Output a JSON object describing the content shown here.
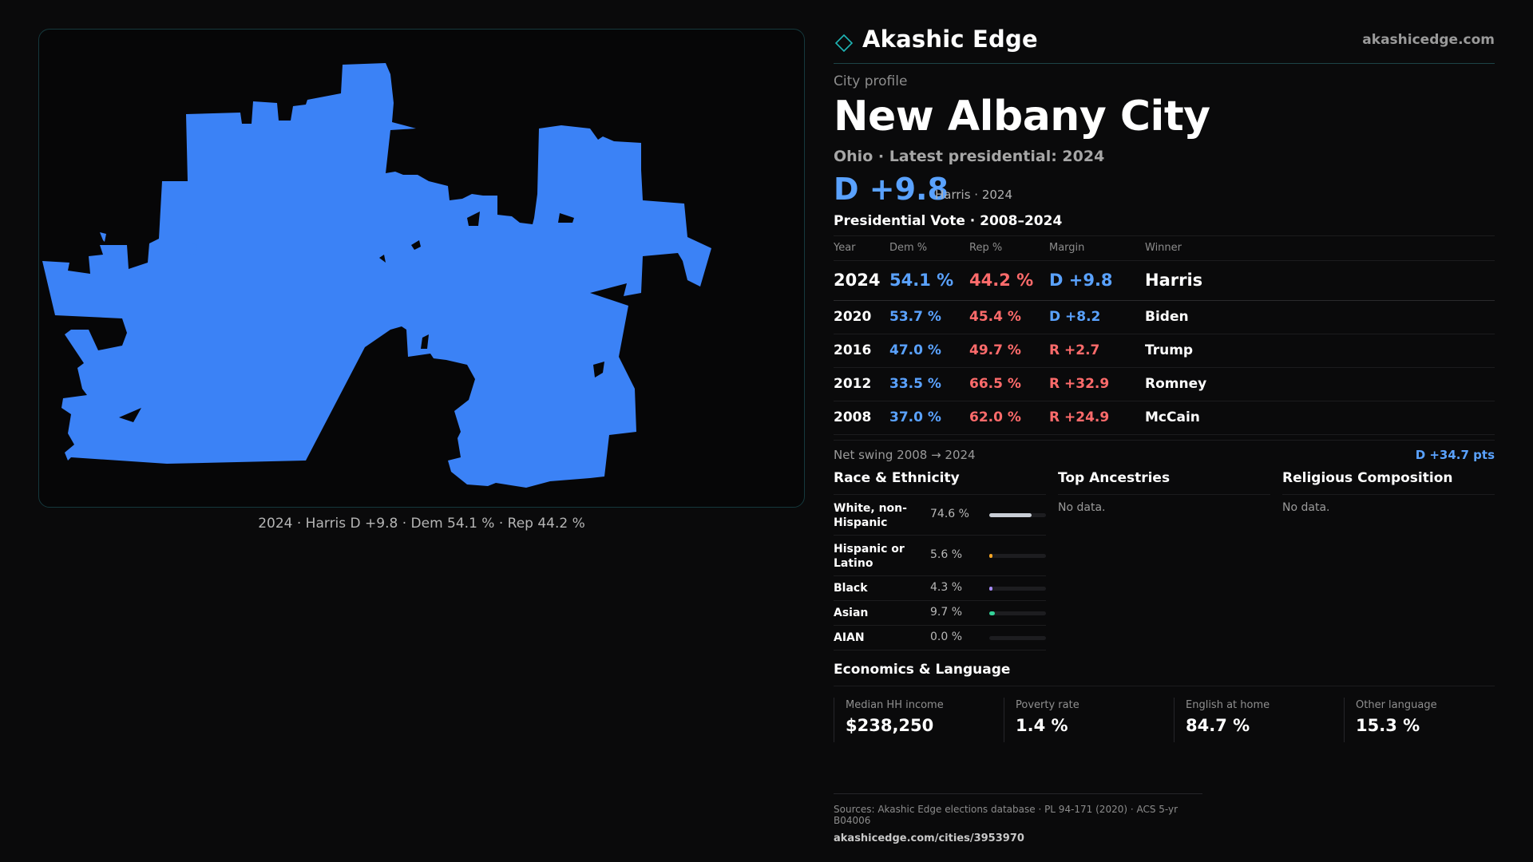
{
  "map": {
    "caption": "2024 · Harris D +9.8 · Dem 54.1 % · Rep 44.2 %",
    "fill_color": "#3b82f6"
  },
  "header": {
    "brand_name": "Akashic Edge",
    "brand_url": "akashicedge.com",
    "logo_icon": "diamond-outline"
  },
  "profile": {
    "eyebrow": "City profile",
    "city_name": "New Albany City",
    "subline": "Ohio · Latest presidential: 2024",
    "headline_margin": "D +9.8",
    "headline_sub": "Harris · 2024"
  },
  "votes": {
    "title": "Presidential Vote · 2008–2024",
    "columns": [
      "Year",
      "Dem %",
      "Rep %",
      "Margin",
      "Winner"
    ],
    "rows": [
      {
        "year": "2024",
        "dem": "54.1 %",
        "rep": "44.2 %",
        "margin": "D +9.8",
        "party": "D",
        "winner": "Harris"
      },
      {
        "year": "2020",
        "dem": "53.7 %",
        "rep": "45.4 %",
        "margin": "D +8.2",
        "party": "D",
        "winner": "Biden"
      },
      {
        "year": "2016",
        "dem": "47.0 %",
        "rep": "49.7 %",
        "margin": "R +2.7",
        "party": "R",
        "winner": "Trump"
      },
      {
        "year": "2012",
        "dem": "33.5 %",
        "rep": "66.5 %",
        "margin": "R +32.9",
        "party": "R",
        "winner": "Romney"
      },
      {
        "year": "2008",
        "dem": "37.0 %",
        "rep": "62.0 %",
        "margin": "R +24.9",
        "party": "R",
        "winner": "McCain"
      }
    ],
    "net_swing_label": "Net swing 2008 → 2024",
    "net_swing_value": "D +34.7 pts"
  },
  "race": {
    "title": "Race & Ethnicity",
    "rows": [
      {
        "label": "White, non-Hispanic",
        "value": "74.6 %",
        "fraction": 0.746,
        "color": "#c9ced6",
        "two_line": true
      },
      {
        "label": "Hispanic or Latino",
        "value": "5.6 %",
        "fraction": 0.056,
        "color": "#f5a524",
        "two_line": true
      },
      {
        "label": "Black",
        "value": "4.3 %",
        "fraction": 0.043,
        "color": "#a78bfa",
        "two_line": false
      },
      {
        "label": "Asian",
        "value": "9.7 %",
        "fraction": 0.097,
        "color": "#34d399",
        "two_line": false
      },
      {
        "label": "AIAN",
        "value": "0.0 %",
        "fraction": 0.0,
        "color": "#f472b6",
        "two_line": false
      }
    ]
  },
  "ancestries": {
    "title": "Top Ancestries",
    "empty": "No data."
  },
  "religion": {
    "title": "Religious Composition",
    "empty": "No data."
  },
  "economics": {
    "title": "Economics & Language",
    "cells": [
      {
        "label": "Median HH income",
        "value": "$238,250"
      },
      {
        "label": "Poverty rate",
        "value": "1.4 %"
      },
      {
        "label": "English at home",
        "value": "84.7 %"
      },
      {
        "label": "Other language",
        "value": "15.3 %"
      }
    ]
  },
  "sources": {
    "line1": "Sources: Akashic Edge elections database · PL 94-171 (2020) · ACS 5-yr B04006",
    "line2": "akashicedge.com/cities/3953970"
  },
  "colors": {
    "dem": "#5aa2ff",
    "rep": "#ff6b6b",
    "accent": "#1fb5b5"
  }
}
